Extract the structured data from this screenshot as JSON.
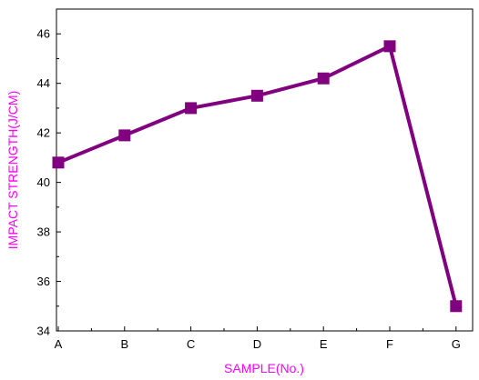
{
  "chart_data": {
    "type": "line",
    "categories": [
      "A",
      "B",
      "C",
      "D",
      "E",
      "F",
      "G"
    ],
    "values": [
      40.8,
      41.9,
      43.0,
      43.5,
      44.2,
      45.5,
      35.0
    ],
    "title": "",
    "xlabel": "SAMPLE(No.)",
    "ylabel": "IMPACT STRENGTH(J/CM)",
    "ylim": [
      34,
      47
    ],
    "yticks": [
      34,
      36,
      38,
      40,
      42,
      44,
      46
    ],
    "grid": false,
    "legend": "none",
    "colors": {
      "series": "#800080",
      "axis_labels": "#ff00ff",
      "axes": "#000000"
    }
  }
}
